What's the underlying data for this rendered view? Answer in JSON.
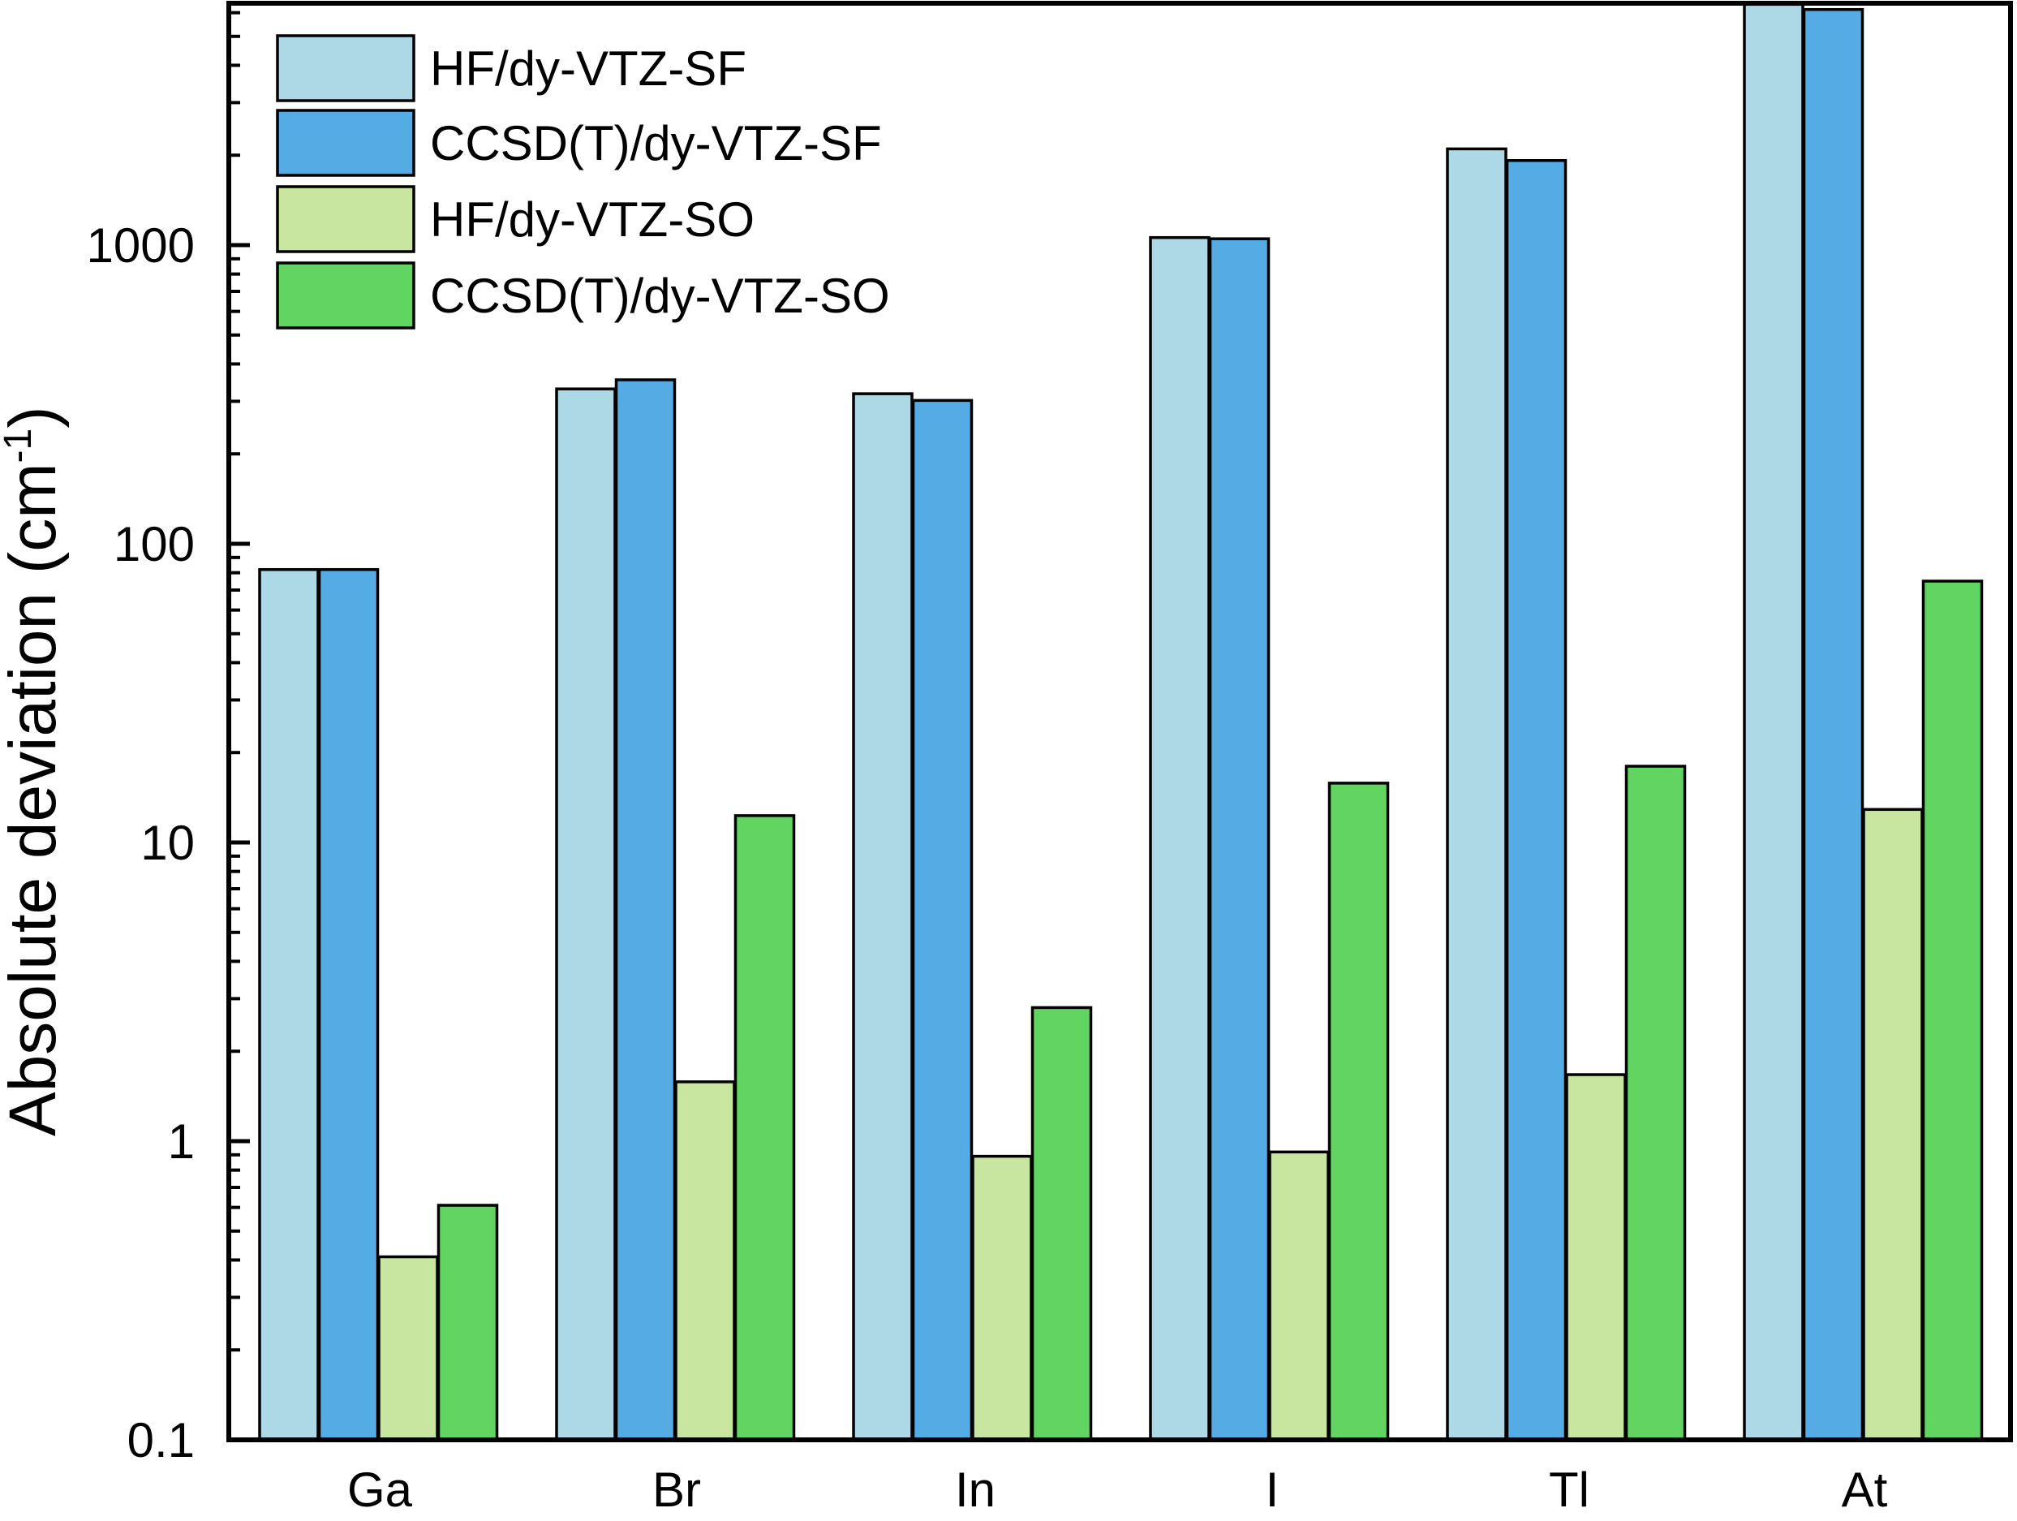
{
  "chart_data": {
    "type": "bar",
    "title": "",
    "xlabel": "",
    "ylabel": "Absolute deviation (cm",
    "ylabel_sup": "-1",
    "ylabel_close": ")",
    "yscale": "log",
    "ylim": [
      0.1,
      7000
    ],
    "yticks": [
      {
        "value": 0.1,
        "label": "0.1"
      },
      {
        "value": 1,
        "label": "1"
      },
      {
        "value": 10,
        "label": "10"
      },
      {
        "value": 100,
        "label": "100"
      },
      {
        "value": 1000,
        "label": "1000"
      }
    ],
    "grid": false,
    "legend_position": "top-left",
    "categories": [
      "Ga",
      "Br",
      "In",
      "I",
      "Tl",
      "At"
    ],
    "series": [
      {
        "name": "HF/dy-VTZ-SF",
        "color": "#add8e6",
        "values": [
          82,
          330,
          318,
          1060,
          2100,
          6400
        ]
      },
      {
        "name": "CCSD(T)/dy-VTZ-SF",
        "color": "#55ace5",
        "values": [
          82,
          354,
          302,
          1050,
          1920,
          6150
        ]
      },
      {
        "name": "HF/dy-VTZ-SO",
        "color": "#c8e6a0",
        "values": [
          0.41,
          1.58,
          0.89,
          0.92,
          1.67,
          12.9
        ]
      },
      {
        "name": "CCSD(T)/dy-VTZ-SO",
        "color": "#62d462",
        "values": [
          0.61,
          12.3,
          2.8,
          15.8,
          18,
          75
        ]
      }
    ]
  }
}
